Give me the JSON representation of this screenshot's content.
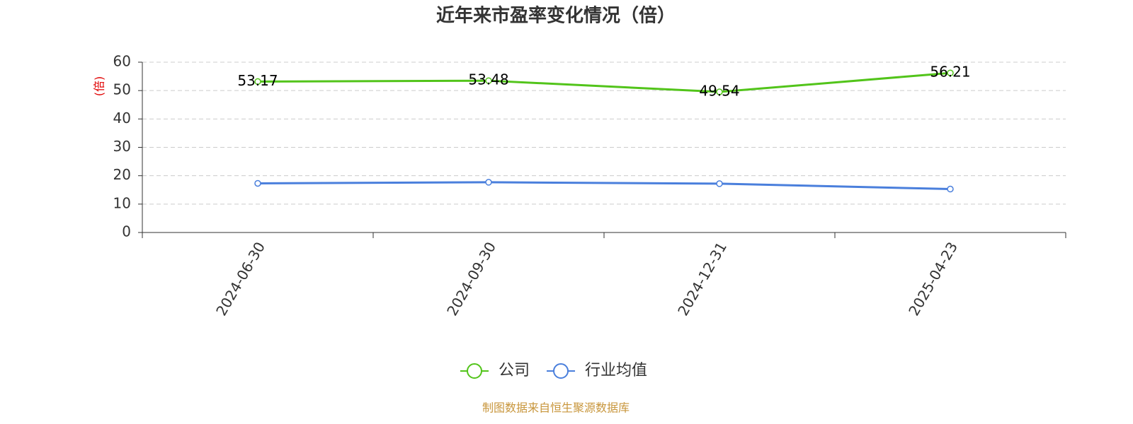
{
  "chart_data": {
    "type": "line",
    "title": "近年来市盈率变化情况（倍）",
    "y_label": "(倍)",
    "source": "制图数据来自恒生聚源数据库",
    "categories": [
      "2024-06-30",
      "2024-09-30",
      "2024-12-31",
      "2025-04-23"
    ],
    "series": [
      {
        "name": "公司",
        "color": "#52c41a",
        "values": [
          53.17,
          53.48,
          49.54,
          56.21
        ],
        "show_labels": true
      },
      {
        "name": "行业均值",
        "color": "#4a7fdc",
        "values": [
          17.3,
          17.7,
          17.2,
          15.3
        ],
        "show_labels": false
      }
    ],
    "ylim": [
      0,
      60
    ],
    "yticks": [
      0,
      10,
      20,
      30,
      40,
      50,
      60
    ],
    "grid": true,
    "legend": "bottom"
  }
}
